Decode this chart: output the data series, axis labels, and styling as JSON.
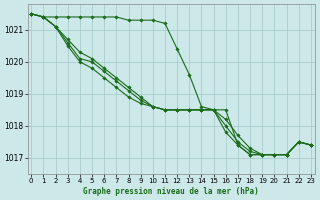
{
  "background_color": "#cce8e8",
  "grid_color": "#aacccc",
  "line_color": "#1a6b1a",
  "xlabel": "Graphe pression niveau de la mer (hPa)",
  "ylim": [
    1016.5,
    1021.8
  ],
  "xlim": [
    -0.3,
    23.3
  ],
  "yticks": [
    1017,
    1018,
    1019,
    1020,
    1021
  ],
  "xticks": [
    0,
    1,
    2,
    3,
    4,
    5,
    6,
    7,
    8,
    9,
    10,
    11,
    12,
    13,
    14,
    15,
    16,
    17,
    18,
    19,
    20,
    21,
    22,
    23
  ],
  "series": [
    {
      "x": [
        0,
        1,
        2,
        3,
        4,
        5,
        6,
        7,
        8,
        9,
        10,
        11,
        12,
        13,
        14,
        15,
        16,
        17,
        18,
        19,
        20,
        21,
        22,
        23
      ],
      "y": [
        1021.5,
        1021.4,
        1021.4,
        1021.4,
        1021.4,
        1021.4,
        1021.4,
        1021.4,
        1021.3,
        1021.3,
        1021.3,
        1021.2,
        1020.4,
        1019.6,
        1018.6,
        1018.5,
        1018.5,
        1017.4,
        1017.1,
        1017.1,
        1017.1,
        1017.1,
        1017.5,
        1017.4
      ]
    },
    {
      "x": [
        0,
        1,
        2,
        3,
        4,
        5,
        6,
        7,
        8,
        9,
        10,
        11,
        12,
        13,
        14,
        15,
        16,
        17,
        18,
        19,
        20,
        21,
        22,
        23
      ],
      "y": [
        1021.5,
        1021.4,
        1021.1,
        1020.7,
        1020.3,
        1020.1,
        1019.8,
        1019.5,
        1019.2,
        1018.9,
        1018.6,
        1018.5,
        1018.5,
        1018.5,
        1018.5,
        1018.5,
        1017.8,
        1017.4,
        1017.1,
        1017.1,
        1017.1,
        1017.1,
        1017.5,
        1017.4
      ]
    },
    {
      "x": [
        0,
        1,
        2,
        3,
        4,
        5,
        6,
        7,
        8,
        9,
        10,
        11,
        12,
        13,
        14,
        15,
        16,
        17,
        18,
        19,
        20,
        21,
        22,
        23
      ],
      "y": [
        1021.5,
        1021.4,
        1021.1,
        1020.6,
        1020.1,
        1020.0,
        1019.7,
        1019.4,
        1019.1,
        1018.8,
        1018.6,
        1018.5,
        1018.5,
        1018.5,
        1018.5,
        1018.5,
        1018.0,
        1017.5,
        1017.2,
        1017.1,
        1017.1,
        1017.1,
        1017.5,
        1017.4
      ]
    },
    {
      "x": [
        0,
        1,
        2,
        3,
        4,
        5,
        6,
        7,
        8,
        9,
        10,
        11,
        12,
        13,
        14,
        15,
        16,
        17,
        18,
        19,
        20,
        21,
        22,
        23
      ],
      "y": [
        1021.5,
        1021.4,
        1021.1,
        1020.5,
        1020.0,
        1019.8,
        1019.5,
        1019.2,
        1018.9,
        1018.7,
        1018.6,
        1018.5,
        1018.5,
        1018.5,
        1018.5,
        1018.5,
        1018.2,
        1017.7,
        1017.3,
        1017.1,
        1017.1,
        1017.1,
        1017.5,
        1017.4
      ]
    }
  ]
}
